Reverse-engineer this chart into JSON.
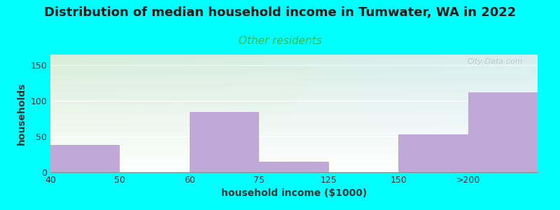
{
  "title": "Distribution of median household income in Tumwater, WA in 2022",
  "subtitle": "Other residents",
  "xlabel": "household income ($1000)",
  "ylabel": "households",
  "background_color": "#00FFFF",
  "bar_color": "#C0A8D8",
  "categories": [
    "40",
    "50",
    "60",
    "75",
    "125",
    "150",
    ">200"
  ],
  "values": [
    38,
    0,
    84,
    15,
    0,
    53,
    112
  ],
  "bin_edges": [
    0,
    1,
    2,
    3,
    4,
    5,
    6,
    7
  ],
  "ylim": [
    0,
    165
  ],
  "yticks": [
    0,
    50,
    100,
    150
  ],
  "title_fontsize": 13,
  "subtitle_fontsize": 11,
  "subtitle_color": "#33BB55",
  "axis_label_fontsize": 10,
  "tick_fontsize": 9,
  "watermark": "City-Data.com",
  "gradient_top": "#d8edd8",
  "gradient_bottom": "#eefff0",
  "gradient_right": "#e0f0f8"
}
